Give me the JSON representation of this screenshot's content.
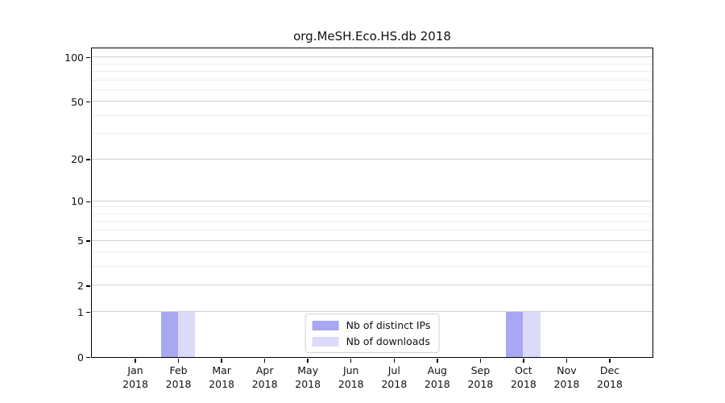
{
  "chart_data": {
    "type": "bar",
    "title": "org.MeSH.Eco.HS.db 2018",
    "categories": [
      "Jan",
      "Feb",
      "Mar",
      "Apr",
      "May",
      "Jun",
      "Jul",
      "Aug",
      "Sep",
      "Oct",
      "Nov",
      "Dec"
    ],
    "year_label": "2018",
    "series": [
      {
        "name": "Nb of distinct IPs",
        "color": "#a7a7f2",
        "values": [
          0,
          1,
          0,
          0,
          0,
          0,
          0,
          0,
          0,
          1,
          0,
          0
        ]
      },
      {
        "name": "Nb of downloads",
        "color": "#dbdbf9",
        "values": [
          0,
          1,
          0,
          0,
          0,
          0,
          0,
          0,
          0,
          1,
          0,
          0
        ]
      }
    ],
    "yscale": "log1p",
    "ylim": [
      0,
      115
    ],
    "yticks_major": [
      0,
      1,
      2,
      5,
      10,
      20,
      50,
      100
    ],
    "yticks_minor": [
      3,
      4,
      6,
      7,
      8,
      9,
      30,
      40,
      60,
      70,
      80,
      90
    ],
    "grid": "horizontal-only",
    "legend_position": "bottom-center"
  },
  "colors": {
    "grid_major": "#d0d0d0",
    "grid_minor": "#ececec",
    "axis": "#000000",
    "text": "#111111",
    "legend_border": "#d2d2d2"
  }
}
